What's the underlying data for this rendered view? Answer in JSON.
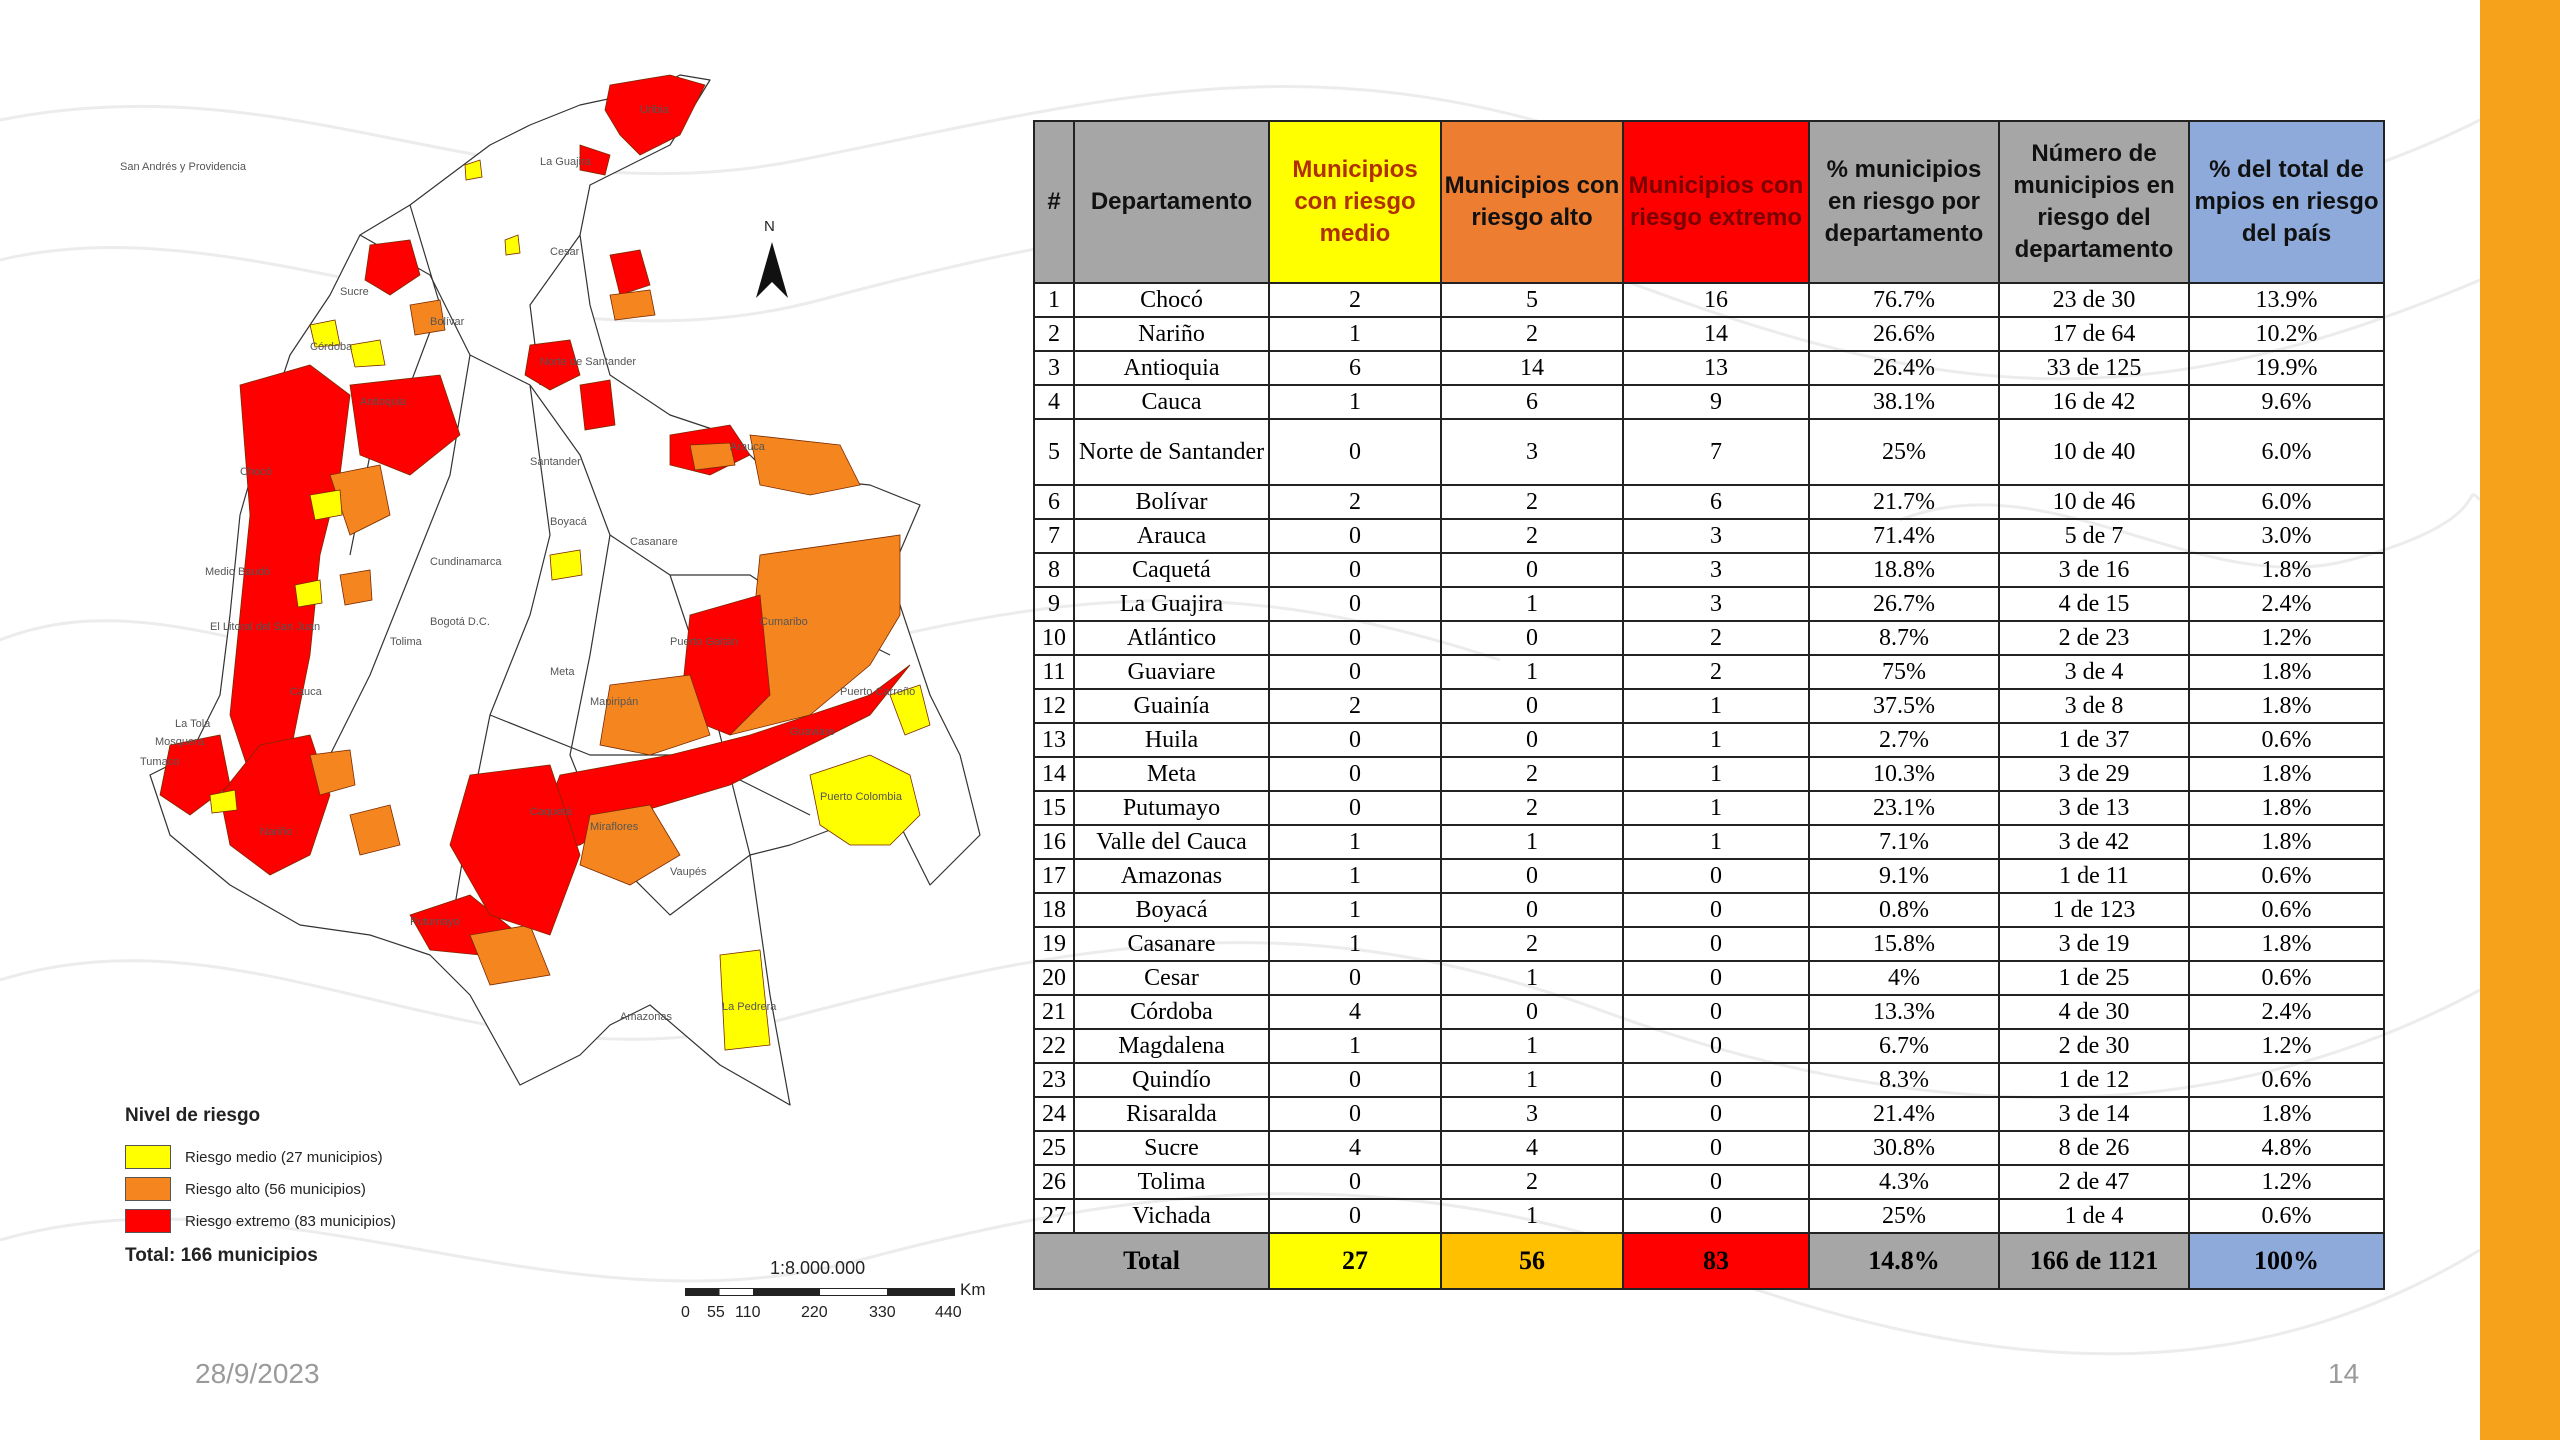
{
  "footer": {
    "date": "28/9/2023",
    "page": "14"
  },
  "map": {
    "north_label": "N",
    "labels": [
      "San Andrés y Providencia",
      "La Guajira",
      "Uribia",
      "Cesar",
      "Sucre",
      "Córdoba",
      "Bolívar",
      "Norte de Santander",
      "Arauca",
      "Santander",
      "Boyacá",
      "Casanare",
      "Cundinamarca",
      "Bogotá D.C.",
      "Tolima",
      "Meta",
      "Mapiripán",
      "Puerto Gaitán",
      "Cumaribo",
      "Puerto Carreño",
      "Guaviare",
      "Puerto Colombia",
      "Caquetá",
      "Miraflores",
      "Vaupés",
      "Amazonas",
      "La Pedrera",
      "Putumayo",
      "Nariño",
      "Tumaco",
      "Cauca",
      "Antioquia",
      "Chocó",
      "Medio Baudó",
      "El Litoral del San Juan",
      "La Tola",
      "Mosquera"
    ],
    "colors": {
      "medio": "#ffff00",
      "alto": "#f5861f",
      "extremo": "#ff0000"
    }
  },
  "legend": {
    "title": "Nivel de riesgo",
    "items": [
      {
        "label": "Riesgo medio (27 municipios)",
        "color": "#ffff00"
      },
      {
        "label": "Riesgo alto (56 municipios)",
        "color": "#f5861f"
      },
      {
        "label": "Riesgo extremo (83 municipios)",
        "color": "#ff0000"
      }
    ],
    "total": "Total: 166 municipios"
  },
  "scale": {
    "ratio": "1:8.000.000",
    "unit": "Km",
    "ticks": [
      "0",
      "55",
      "110",
      "220",
      "330",
      "440"
    ]
  },
  "table": {
    "headers": [
      "#",
      "Departamento",
      "Municipios con riesgo medio",
      "Municipios con riesgo alto",
      "Municipios con riesgo extremo",
      "% municipios en riesgo por departamento",
      "Número de municipios en riesgo del departamento",
      "% del total de mpios en riesgo del país"
    ],
    "rows": [
      [
        "1",
        "Chocó",
        "2",
        "5",
        "16",
        "76.7%",
        "23 de 30",
        "13.9%"
      ],
      [
        "2",
        "Nariño",
        "1",
        "2",
        "14",
        "26.6%",
        "17 de 64",
        "10.2%"
      ],
      [
        "3",
        "Antioquia",
        "6",
        "14",
        "13",
        "26.4%",
        "33 de 125",
        "19.9%"
      ],
      [
        "4",
        "Cauca",
        "1",
        "6",
        "9",
        "38.1%",
        "16 de 42",
        "9.6%"
      ],
      [
        "5",
        "Norte de Santander",
        "0",
        "3",
        "7",
        "25%",
        "10 de 40",
        "6.0%"
      ],
      [
        "6",
        "Bolívar",
        "2",
        "2",
        "6",
        "21.7%",
        "10 de 46",
        "6.0%"
      ],
      [
        "7",
        "Arauca",
        "0",
        "2",
        "3",
        "71.4%",
        "5 de 7",
        "3.0%"
      ],
      [
        "8",
        "Caquetá",
        "0",
        "0",
        "3",
        "18.8%",
        "3 de 16",
        "1.8%"
      ],
      [
        "9",
        "La Guajira",
        "0",
        "1",
        "3",
        "26.7%",
        "4 de 15",
        "2.4%"
      ],
      [
        "10",
        "Atlántico",
        "0",
        "0",
        "2",
        "8.7%",
        "2 de 23",
        "1.2%"
      ],
      [
        "11",
        "Guaviare",
        "0",
        "1",
        "2",
        "75%",
        "3 de 4",
        "1.8%"
      ],
      [
        "12",
        "Guainía",
        "2",
        "0",
        "1",
        "37.5%",
        "3 de 8",
        "1.8%"
      ],
      [
        "13",
        "Huila",
        "0",
        "0",
        "1",
        "2.7%",
        "1 de 37",
        "0.6%"
      ],
      [
        "14",
        "Meta",
        "0",
        "2",
        "1",
        "10.3%",
        "3 de 29",
        "1.8%"
      ],
      [
        "15",
        "Putumayo",
        "0",
        "2",
        "1",
        "23.1%",
        "3 de 13",
        "1.8%"
      ],
      [
        "16",
        "Valle del Cauca",
        "1",
        "1",
        "1",
        "7.1%",
        "3 de 42",
        "1.8%"
      ],
      [
        "17",
        "Amazonas",
        "1",
        "0",
        "0",
        "9.1%",
        "1 de 11",
        "0.6%"
      ],
      [
        "18",
        "Boyacá",
        "1",
        "0",
        "0",
        "0.8%",
        "1 de 123",
        "0.6%"
      ],
      [
        "19",
        "Casanare",
        "1",
        "2",
        "0",
        "15.8%",
        "3 de 19",
        "1.8%"
      ],
      [
        "20",
        "Cesar",
        "0",
        "1",
        "0",
        "4%",
        "1 de 25",
        "0.6%"
      ],
      [
        "21",
        "Córdoba",
        "4",
        "0",
        "0",
        "13.3%",
        "4 de 30",
        "2.4%"
      ],
      [
        "22",
        "Magdalena",
        "1",
        "1",
        "0",
        "6.7%",
        "2 de 30",
        "1.2%"
      ],
      [
        "23",
        "Quindío",
        "0",
        "1",
        "0",
        "8.3%",
        "1 de 12",
        "0.6%"
      ],
      [
        "24",
        "Risaralda",
        "0",
        "3",
        "0",
        "21.4%",
        "3 de 14",
        "1.8%"
      ],
      [
        "25",
        "Sucre",
        "4",
        "4",
        "0",
        "30.8%",
        "8 de 26",
        "4.8%"
      ],
      [
        "26",
        "Tolima",
        "0",
        "2",
        "0",
        "4.3%",
        "2 de 47",
        "1.2%"
      ],
      [
        "27",
        "Vichada",
        "0",
        "1",
        "0",
        "25%",
        "1 de 4",
        "0.6%"
      ]
    ],
    "total": [
      "Total",
      "27",
      "56",
      "83",
      "14.8%",
      "166 de 1121",
      "100%"
    ]
  }
}
